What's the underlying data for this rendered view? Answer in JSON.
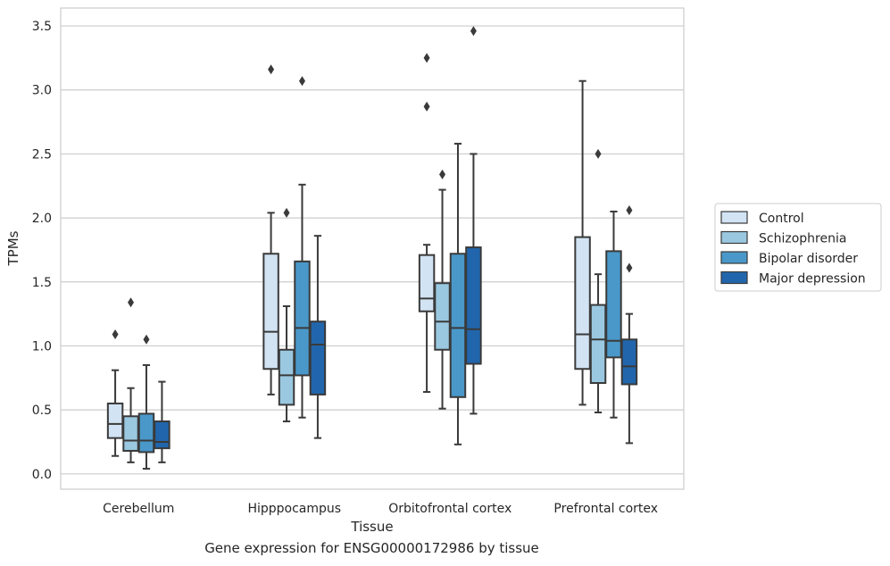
{
  "chart_data": {
    "type": "box",
    "title": "",
    "caption": "Gene expression for ENSG00000172986 by tissue",
    "xlabel": "Tissue",
    "ylabel": "TPMs",
    "ylim": [
      -0.12,
      3.64
    ],
    "yticks": [
      "0.0",
      "0.5",
      "1.0",
      "1.5",
      "2.0",
      "2.5",
      "3.0",
      "3.5"
    ],
    "grid": true,
    "legend_position": "right",
    "categories": [
      "Cerebellum",
      "Hipppocampus",
      "Orbitofrontal cortex",
      "Prefrontal cortex"
    ],
    "series": [
      {
        "name": "Control",
        "color": "#d2e3f3",
        "boxes": [
          {
            "whislo": 0.14,
            "q1": 0.28,
            "med": 0.39,
            "q3": 0.55,
            "whishi": 0.81,
            "fliers": [
              1.09
            ]
          },
          {
            "whislo": 0.62,
            "q1": 0.82,
            "med": 1.11,
            "q3": 1.72,
            "whishi": 2.04,
            "fliers": [
              3.16
            ]
          },
          {
            "whislo": 0.64,
            "q1": 1.27,
            "med": 1.37,
            "q3": 1.71,
            "whishi": 1.79,
            "fliers": [
              2.87,
              3.25
            ]
          },
          {
            "whislo": 0.54,
            "q1": 0.82,
            "med": 1.09,
            "q3": 1.85,
            "whishi": 3.07,
            "fliers": []
          }
        ]
      },
      {
        "name": "Schizophrenia",
        "color": "#9ac8e0",
        "boxes": [
          {
            "whislo": 0.09,
            "q1": 0.18,
            "med": 0.26,
            "q3": 0.45,
            "whishi": 0.67,
            "fliers": [
              1.34
            ]
          },
          {
            "whislo": 0.41,
            "q1": 0.54,
            "med": 0.77,
            "q3": 0.97,
            "whishi": 1.31,
            "fliers": [
              2.04
            ]
          },
          {
            "whislo": 0.51,
            "q1": 0.97,
            "med": 1.19,
            "q3": 1.49,
            "whishi": 2.22,
            "fliers": [
              2.34
            ]
          },
          {
            "whislo": 0.48,
            "q1": 0.71,
            "med": 1.05,
            "q3": 1.32,
            "whishi": 1.56,
            "fliers": [
              2.5
            ]
          }
        ]
      },
      {
        "name": "Bipolar disorder",
        "color": "#4a98c9",
        "boxes": [
          {
            "whislo": 0.04,
            "q1": 0.17,
            "med": 0.26,
            "q3": 0.47,
            "whishi": 0.85,
            "fliers": [
              1.05
            ]
          },
          {
            "whislo": 0.44,
            "q1": 0.77,
            "med": 1.14,
            "q3": 1.66,
            "whishi": 2.26,
            "fliers": [
              3.07
            ]
          },
          {
            "whislo": 0.23,
            "q1": 0.6,
            "med": 1.14,
            "q3": 1.72,
            "whishi": 2.58,
            "fliers": []
          },
          {
            "whislo": 0.44,
            "q1": 0.91,
            "med": 1.04,
            "q3": 1.74,
            "whishi": 2.05,
            "fliers": []
          }
        ]
      },
      {
        "name": "Major depression",
        "color": "#2166ac",
        "boxes": [
          {
            "whislo": 0.09,
            "q1": 0.2,
            "med": 0.25,
            "q3": 0.41,
            "whishi": 0.72,
            "fliers": []
          },
          {
            "whislo": 0.28,
            "q1": 0.62,
            "med": 1.01,
            "q3": 1.19,
            "whishi": 1.86,
            "fliers": []
          },
          {
            "whislo": 0.47,
            "q1": 0.86,
            "med": 1.13,
            "q3": 1.77,
            "whishi": 2.5,
            "fliers": [
              3.46
            ]
          },
          {
            "whislo": 0.24,
            "q1": 0.7,
            "med": 0.84,
            "q3": 1.05,
            "whishi": 1.25,
            "fliers": [
              1.61,
              2.06
            ]
          }
        ]
      }
    ]
  }
}
